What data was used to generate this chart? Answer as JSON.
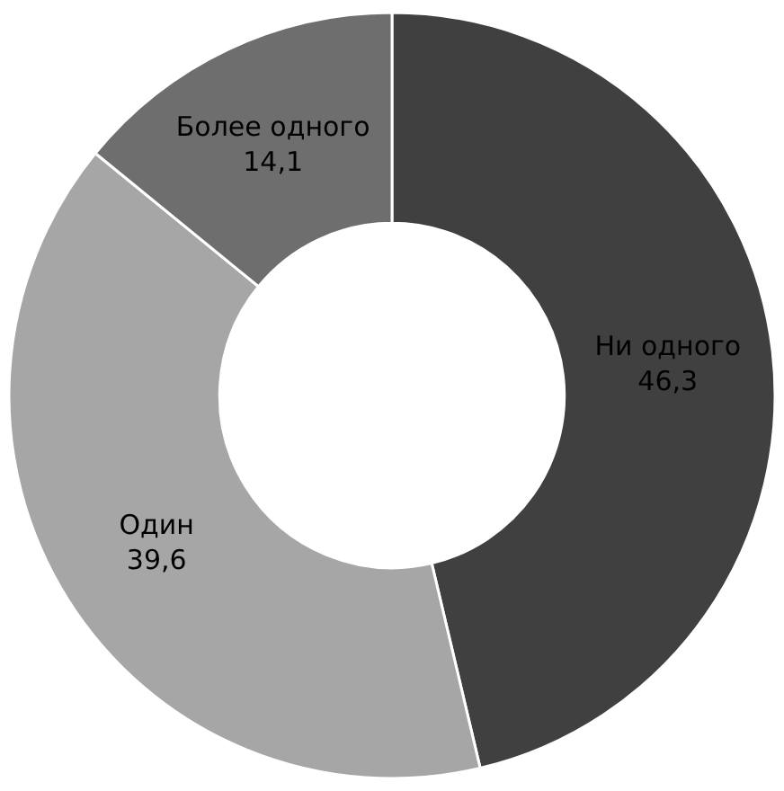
{
  "chart_data": {
    "type": "donut",
    "categories": [
      "Ни одного",
      "Один",
      "Более одного"
    ],
    "values": [
      46.3,
      39.6,
      14.1
    ],
    "value_labels": [
      "46,3",
      "39,6",
      "14,1"
    ],
    "colors": [
      "#404040",
      "#a6a6a6",
      "#6e6e6e"
    ],
    "legend": false
  }
}
